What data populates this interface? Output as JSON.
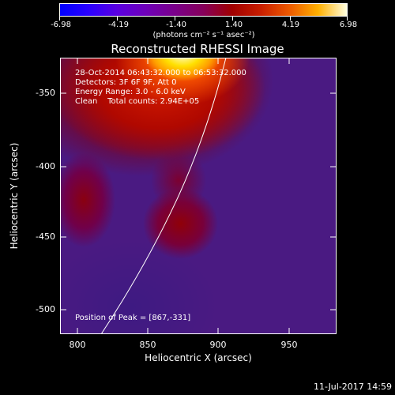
{
  "colorbar": {
    "ticks": [
      "-6.98",
      "-4.19",
      "-1.40",
      "1.40",
      "4.19",
      "6.98"
    ],
    "units": "(photons cm⁻² s⁻¹ asec⁻²)"
  },
  "title": "Reconstructed RHESSI Image",
  "annotations": {
    "time_range": "28-Oct-2014 06:43:32.000 to 06:53:32.000",
    "detectors": "Detectors: 3F 6F 9F, Att 0",
    "energy": "Energy Range: 3.0 - 6.0 keV",
    "clean": "Clean    Total counts: 2.94E+05",
    "peak": "Position of Peak = [867,-331]"
  },
  "axes": {
    "xlabel": "Heliocentric X (arcsec)",
    "ylabel": "Heliocentric Y (arcsec)",
    "x_ticks": [
      "800",
      "850",
      "900",
      "950"
    ],
    "y_ticks": [
      "-350",
      "-400",
      "-450",
      "-500"
    ]
  },
  "footer": "11-Jul-2017 14:59",
  "colors": {
    "background": "#000000",
    "plot_low": "#4a1a82",
    "plot_high": "#ffffe0"
  }
}
